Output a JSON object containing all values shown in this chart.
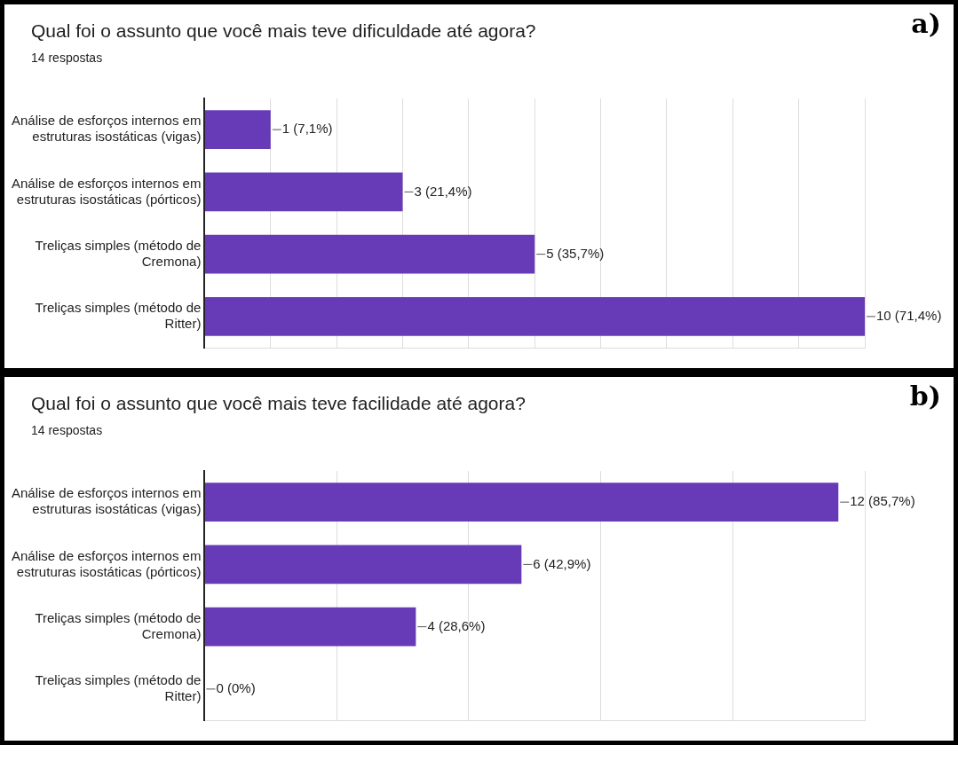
{
  "chart_data": [
    {
      "type": "bar",
      "orientation": "horizontal",
      "title": "Qual foi o assunto que você mais teve dificuldade até agora?",
      "subtitle": "14 respostas",
      "annotations": [
        "a)"
      ],
      "categories": [
        "Análise de esforços internos em estruturas isostáticas (vigas)",
        "Análise de esforços internos em estruturas isostáticas (pórticos)",
        "Treliças simples (método de Cremona)",
        "Treliças simples (método de Ritter)"
      ],
      "values": [
        1,
        3,
        5,
        10
      ],
      "value_labels": [
        "1 (7,1%)",
        "3 (21,4%)",
        "5 (35,7%)",
        "10 (71,4%)"
      ],
      "color": "#673ab7",
      "xlim": [
        0,
        10
      ],
      "xticks": [
        {
          "value": 0,
          "label": null
        },
        {
          "value": 1,
          "label": null
        },
        {
          "value": 2,
          "label": null
        },
        {
          "value": 3,
          "label": null
        },
        {
          "value": 4,
          "label": null
        },
        {
          "value": 5,
          "label": null
        },
        {
          "value": 6,
          "label": null
        },
        {
          "value": 7,
          "label": null
        },
        {
          "value": 8,
          "label": null
        },
        {
          "value": 9,
          "label": null
        },
        {
          "value": 10,
          "label": null
        }
      ],
      "grid": "x",
      "tick_labels": "y"
    },
    {
      "type": "bar",
      "orientation": "horizontal",
      "title": "Qual foi o assunto que você mais teve facilidade até agora?",
      "subtitle": "14 respostas",
      "annotations": [
        "b)"
      ],
      "categories": [
        "Análise de esforços internos em estruturas isostáticas (vigas)",
        "Análise de esforços internos em estruturas isostáticas (pórticos)",
        "Treliças simples (método de Cremona)",
        "Treliças simples (método de Ritter)"
      ],
      "values": [
        12,
        6,
        4,
        0
      ],
      "value_labels": [
        "12 (85,7%)",
        "6 (42,9%)",
        "4 (28,6%)",
        "0 (0%)"
      ],
      "color": "#673ab7",
      "xlim": [
        0,
        12.5
      ],
      "xticks": [
        {
          "value": 0,
          "label": null
        },
        {
          "value": 2.5,
          "label": null
        },
        {
          "value": 5,
          "label": null
        },
        {
          "value": 7.5,
          "label": null
        },
        {
          "value": 10,
          "label": null
        },
        {
          "value": 12.5,
          "label": null
        }
      ],
      "grid": "x",
      "tick_labels": "y"
    }
  ]
}
